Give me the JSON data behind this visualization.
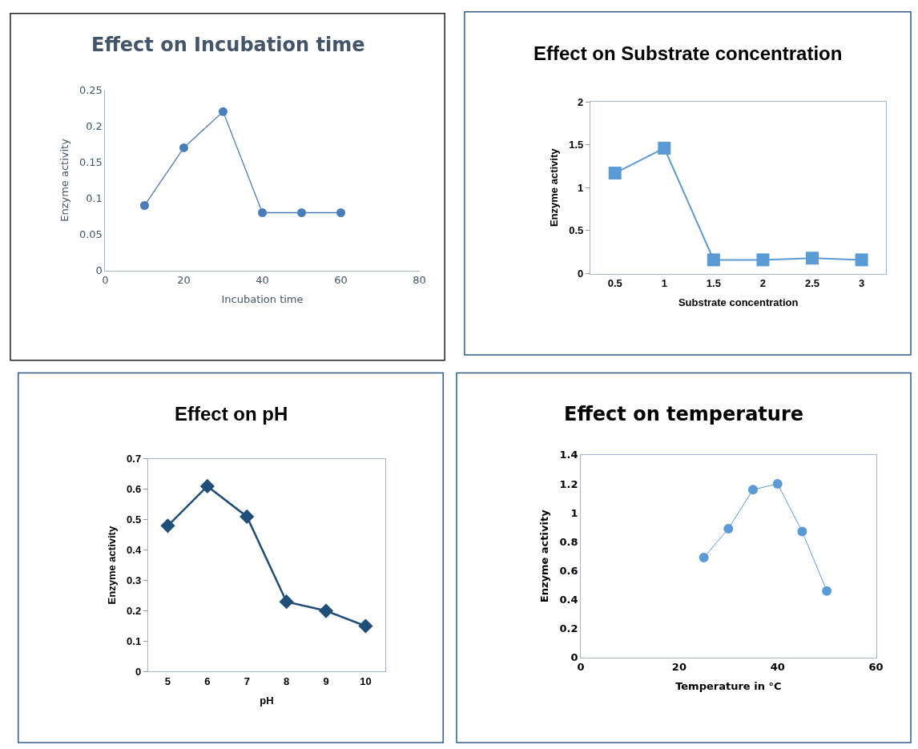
{
  "chart_data": [
    {
      "type": "line",
      "title": "Effect on Incubation time",
      "xlabel": "Incubation time",
      "ylabel": "Enzyme activity",
      "x": [
        10,
        20,
        30,
        40,
        50,
        60
      ],
      "series": [
        {
          "color": "#4a7ebb",
          "values": [
            0.09,
            0.17,
            0.22,
            0.08,
            0.08,
            0.08
          ]
        }
      ],
      "xlim": [
        0,
        80
      ],
      "xticks": [
        0,
        20,
        40,
        60,
        80
      ],
      "ylim": [
        0,
        0.25
      ],
      "yticks": [
        0,
        0.05,
        0.1,
        0.15,
        0.2,
        0.25
      ],
      "marker": "circle",
      "line_style": "solid"
    },
    {
      "type": "line",
      "title": "Effect on Substrate concentration",
      "xlabel": "Substrate concentration",
      "ylabel": "Enzyme activity",
      "categories": [
        "0.5",
        "1",
        "1.5",
        "2",
        "2.5",
        "3"
      ],
      "series": [
        {
          "color": "#5b9bd5",
          "values": [
            1.17,
            1.46,
            0.16,
            0.16,
            0.18,
            0.16
          ]
        }
      ],
      "ylim": [
        0,
        2
      ],
      "yticks": [
        0,
        0.5,
        1,
        1.5,
        2
      ],
      "marker": "square",
      "line_style": "solid"
    },
    {
      "type": "line",
      "title": "Effect on pH",
      "xlabel": "pH",
      "ylabel": "Enzyme activity",
      "categories": [
        "5",
        "6",
        "7",
        "8",
        "9",
        "10"
      ],
      "series": [
        {
          "color": "#1f4e79",
          "values": [
            0.48,
            0.61,
            0.51,
            0.23,
            0.2,
            0.15
          ]
        }
      ],
      "ylim": [
        0,
        0.7
      ],
      "yticks": [
        0,
        0.1,
        0.2,
        0.3,
        0.4,
        0.5,
        0.6,
        0.7
      ],
      "marker": "diamond",
      "line_style": "solid"
    },
    {
      "type": "line",
      "title": "Effect on temperature",
      "xlabel": "Temperature in °C",
      "ylabel": "Enzyme activity",
      "x": [
        25,
        30,
        35,
        40,
        45,
        50
      ],
      "series": [
        {
          "color": "#5b9bd5",
          "values": [
            0.69,
            0.89,
            1.16,
            1.2,
            0.87,
            0.46
          ]
        }
      ],
      "xlim": [
        0,
        60
      ],
      "xticks": [
        0,
        20,
        40,
        60
      ],
      "ylim": [
        0,
        1.4
      ],
      "yticks": [
        0,
        0.2,
        0.4,
        0.6,
        0.8,
        1,
        1.2,
        1.4
      ],
      "marker": "circle",
      "line_style": "solid"
    }
  ]
}
